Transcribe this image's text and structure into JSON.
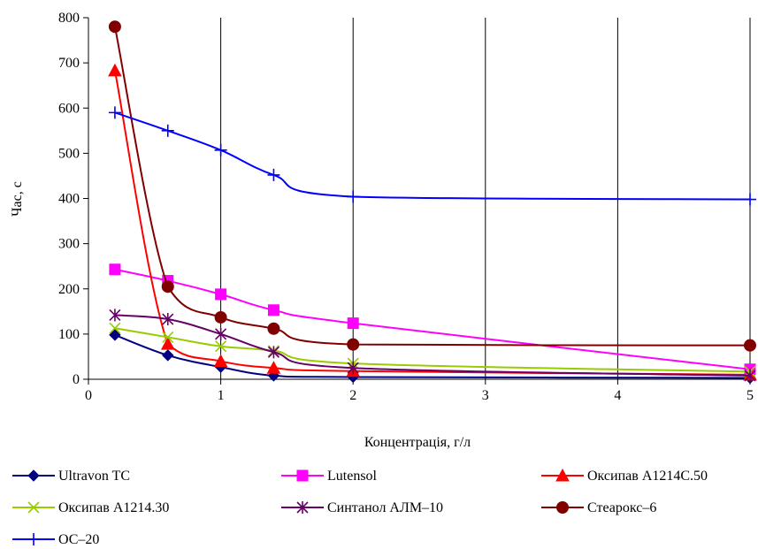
{
  "chart_data": {
    "type": "line",
    "title": "",
    "xlabel": "Концентрація, г/л",
    "ylabel": "Час, с",
    "xlim": [
      0,
      5
    ],
    "ylim": [
      0,
      800
    ],
    "xticks": [
      0,
      1,
      2,
      3,
      4,
      5
    ],
    "yticks": [
      0,
      100,
      200,
      300,
      400,
      500,
      600,
      700,
      800
    ],
    "grid": "vertical",
    "legend_position": "bottom",
    "series": [
      {
        "name": "Ultravon TC",
        "color": "#000080",
        "marker": "diamond",
        "x": [
          0.2,
          0.6,
          1.0,
          1.4,
          2.0,
          5.0
        ],
        "y": [
          98,
          53,
          27,
          8,
          5,
          3
        ]
      },
      {
        "name": "Lutensol",
        "color": "#ff00ff",
        "marker": "square",
        "x": [
          0.2,
          0.6,
          1.0,
          1.4,
          2.0,
          5.0
        ],
        "y": [
          243,
          218,
          188,
          153,
          124,
          22
        ]
      },
      {
        "name": "Оксипав А1214С.50",
        "color": "#ff0000",
        "marker": "triangle",
        "x": [
          0.2,
          0.6,
          1.0,
          1.4,
          2.0,
          5.0
        ],
        "y": [
          683,
          78,
          40,
          25,
          18,
          10
        ]
      },
      {
        "name": "Оксипав А1214.30",
        "color": "#99cc00",
        "marker": "x",
        "x": [
          0.2,
          0.6,
          1.0,
          1.4,
          2.0,
          5.0
        ],
        "y": [
          113,
          93,
          73,
          63,
          35,
          17
        ]
      },
      {
        "name": "Синтанол АЛМ–10",
        "color": "#660066",
        "marker": "star",
        "x": [
          0.2,
          0.6,
          1.0,
          1.4,
          2.0,
          5.0
        ],
        "y": [
          142,
          133,
          100,
          60,
          25,
          8
        ]
      },
      {
        "name": "Стеарокс–6",
        "color": "#800000",
        "marker": "circle",
        "x": [
          0.2,
          0.6,
          1.0,
          1.4,
          2.0,
          5.0
        ],
        "y": [
          780,
          205,
          137,
          112,
          77,
          75
        ]
      },
      {
        "name": "ОС–20",
        "color": "#0000ff",
        "marker": "plus",
        "x": [
          0.2,
          0.6,
          1.0,
          1.4,
          2.0,
          5.0
        ],
        "y": [
          590,
          550,
          507,
          452,
          404,
          398
        ]
      }
    ]
  }
}
